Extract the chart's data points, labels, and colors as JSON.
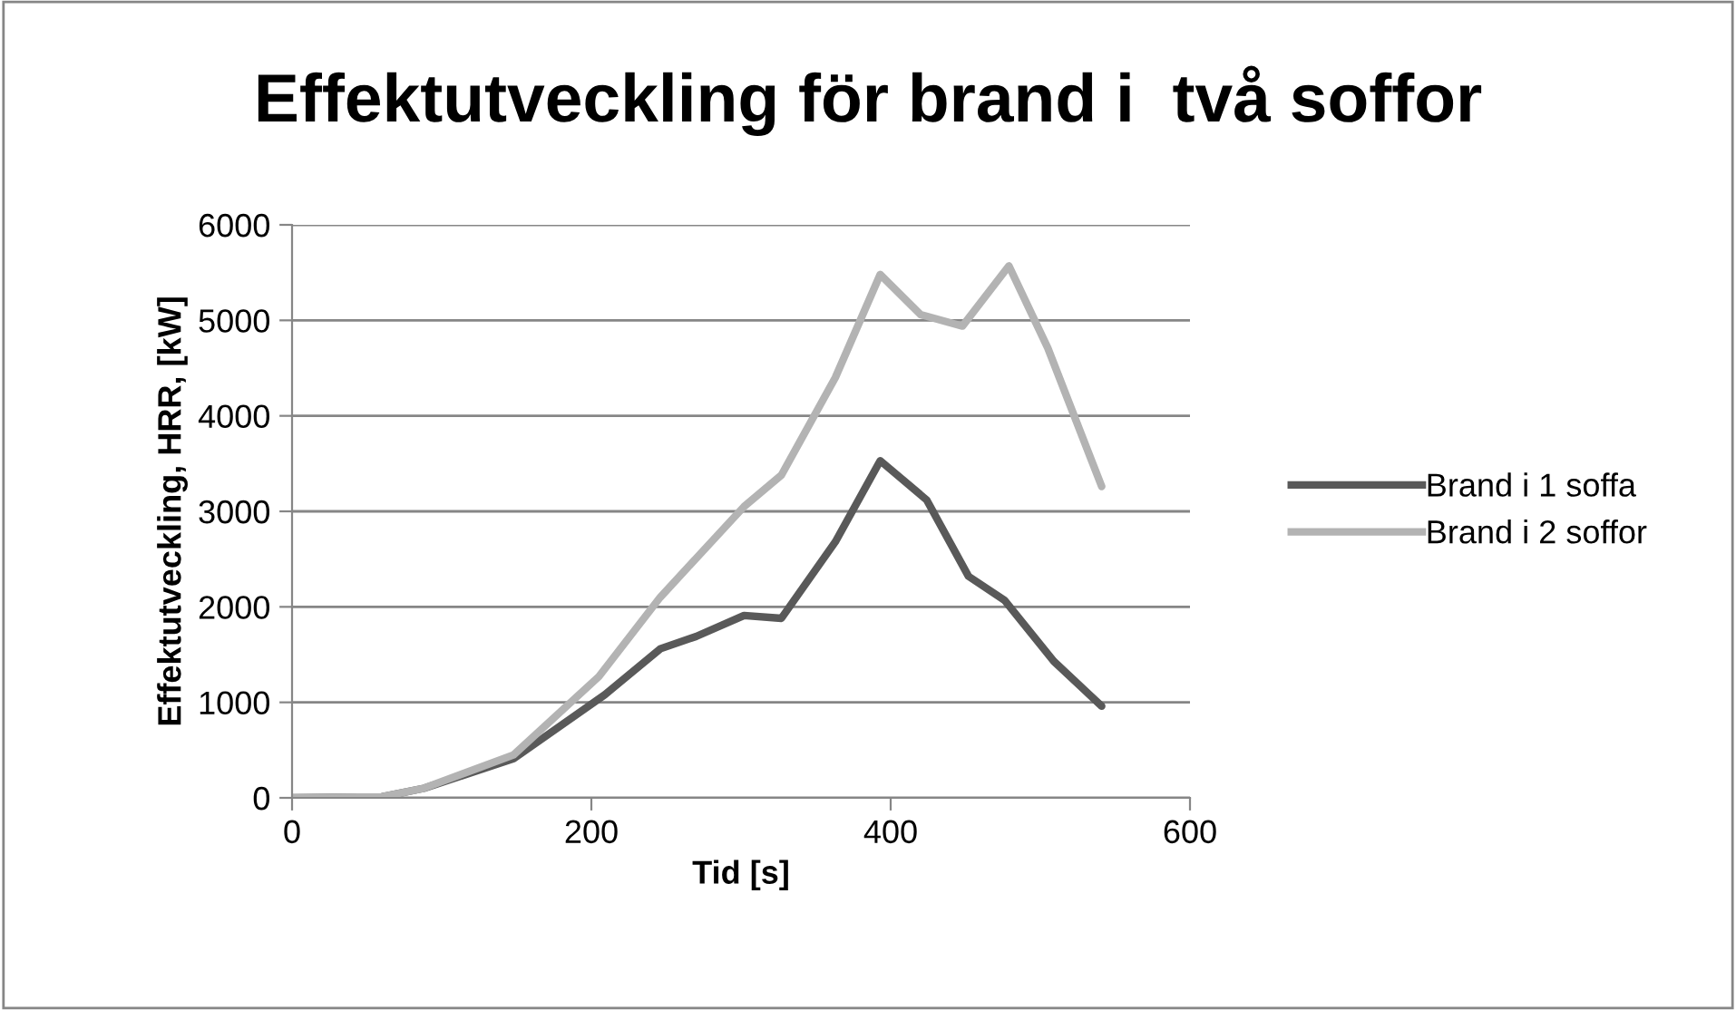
{
  "chart_data": {
    "type": "line",
    "title": "Effektutveckling för brand i  två soffor",
    "xlabel": "Tid [s]",
    "ylabel": "Effektutveckling, HRR, [kW]",
    "series": [
      {
        "name": "Brand i 1 soffa",
        "color": "#595959",
        "x": [
          0,
          60,
          88,
          148,
          209,
          246,
          270,
          302,
          327,
          363,
          393,
          424,
          452,
          476,
          509,
          541
        ],
        "values": [
          0,
          10,
          100,
          410,
          1080,
          1560,
          1690,
          1910,
          1880,
          2680,
          3530,
          3120,
          2320,
          2070,
          1430,
          960
        ]
      },
      {
        "name": "Brand i 2 soffor",
        "color": "#b3b3b3",
        "x": [
          0,
          60,
          88,
          148,
          205,
          246,
          302,
          327,
          363,
          393,
          420,
          448,
          479,
          505,
          541
        ],
        "values": [
          0,
          10,
          100,
          450,
          1270,
          2100,
          3050,
          3380,
          4400,
          5480,
          5060,
          4940,
          5570,
          4710,
          3260
        ]
      }
    ],
    "xlim": [
      0,
      600
    ],
    "xticks": [
      0,
      200,
      400,
      600
    ],
    "ylim": [
      0,
      6000
    ],
    "yticks": [
      0,
      1000,
      2000,
      3000,
      4000,
      5000,
      6000
    ],
    "grid": "y",
    "legend": "right",
    "marker": "none",
    "line_style": "solid"
  }
}
